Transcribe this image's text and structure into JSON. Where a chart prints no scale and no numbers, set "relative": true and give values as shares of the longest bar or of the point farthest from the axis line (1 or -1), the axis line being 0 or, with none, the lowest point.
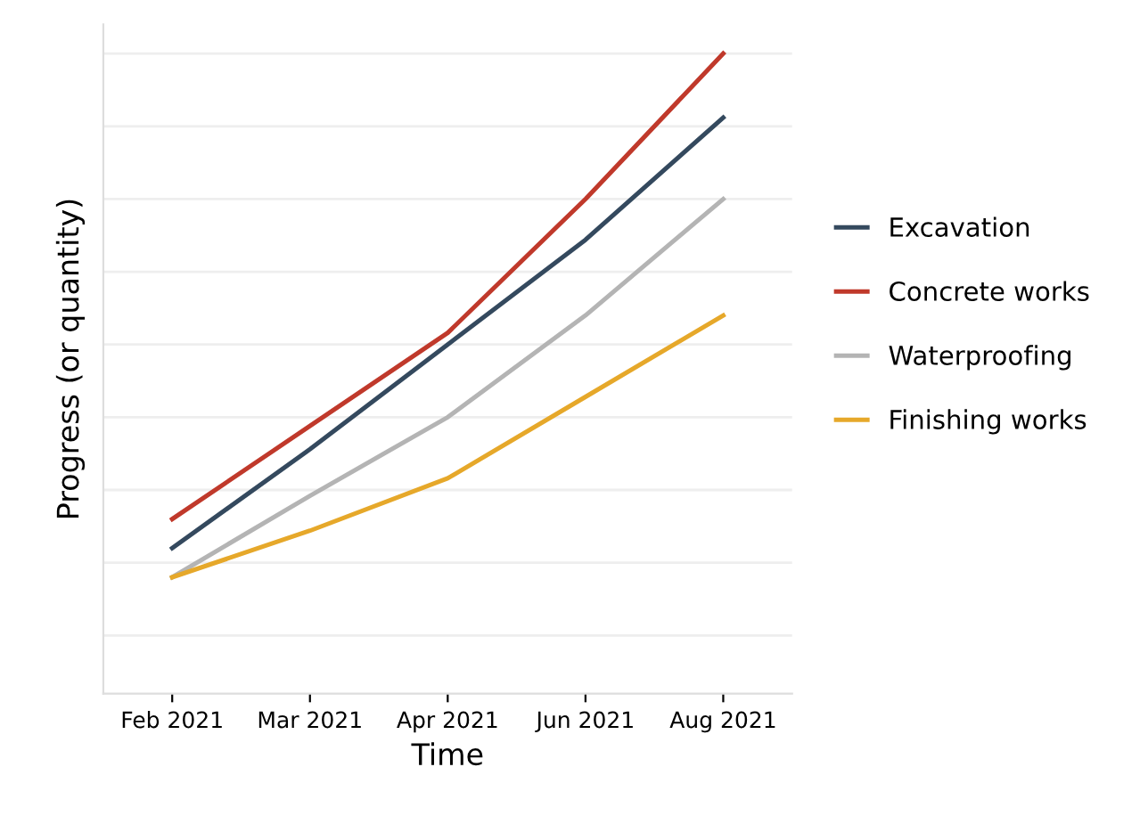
{
  "chart_data": {
    "type": "line",
    "relative": true,
    "xlabel": "Time",
    "ylabel": "Progress (or quantity)",
    "categories": [
      "Feb 2021",
      "Mar 2021",
      "Apr 2021",
      "Jun 2021",
      "Aug 2021"
    ],
    "series": [
      {
        "name": "Excavation",
        "color": "#34495e",
        "values": [
          0.15,
          0.32,
          0.5,
          0.68,
          0.89
        ]
      },
      {
        "name": "Concrete works",
        "color": "#c0392b",
        "values": [
          0.2,
          0.36,
          0.52,
          0.75,
          1.0
        ]
      },
      {
        "name": "Waterproofing",
        "color": "#b4b4b4",
        "values": [
          0.1,
          0.24,
          0.375,
          0.55,
          0.75
        ]
      },
      {
        "name": "Finishing works",
        "color": "#e6a82a",
        "values": [
          0.1,
          0.18,
          0.27,
          0.41,
          0.55
        ]
      }
    ],
    "grid": "y",
    "legend": "right",
    "marker": "none",
    "line_style": "solid"
  }
}
